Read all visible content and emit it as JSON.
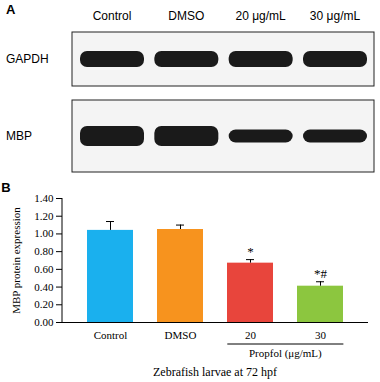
{
  "blot": {
    "panel": "A",
    "lanes": [
      "Control",
      "DMSO",
      "20 μg/mL",
      "30 μg/mL"
    ],
    "proteins": [
      "GAPDH",
      "MBP"
    ]
  },
  "chart_data": {
    "type": "bar",
    "title": "B",
    "categories": [
      "Control",
      "DMSO",
      "20",
      "30"
    ],
    "values": [
      1.04,
      1.05,
      0.67,
      0.41
    ],
    "errors": [
      0.1,
      0.05,
      0.04,
      0.05
    ],
    "colors": [
      "#1ab0ee",
      "#f7931e",
      "#e8453c",
      "#8cc63f"
    ],
    "ylabel": "MBP protein expression",
    "xlabel": "Zebrafish larvae at 72 hpf",
    "ylim": [
      0,
      1.4
    ],
    "yticks": [
      {
        "value": 0,
        "label": "0.00"
      },
      {
        "value": 0.2,
        "label": "0.20"
      },
      {
        "value": 0.4,
        "label": "0.40"
      },
      {
        "value": 0.6,
        "label": "0.60"
      },
      {
        "value": 0.8,
        "label": "0.80"
      },
      {
        "value": 1,
        "label": "1.00"
      },
      {
        "value": 1.2,
        "label": "1.20"
      },
      {
        "value": 1.4,
        "label": "1.40"
      }
    ],
    "annotations": [
      {
        "category": "20",
        "text": "*"
      },
      {
        "category": "30",
        "text": "*#"
      }
    ],
    "group_label": {
      "text": "Propfol (μg/mL)",
      "categories": [
        "20",
        "30"
      ]
    }
  }
}
